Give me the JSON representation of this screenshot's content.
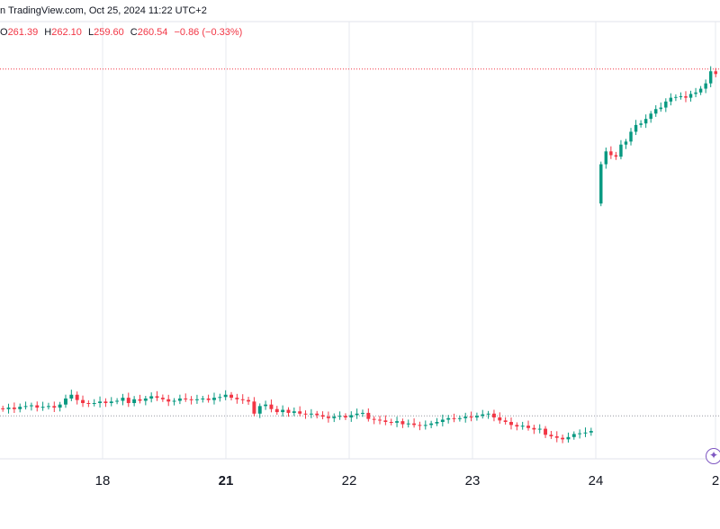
{
  "header": {
    "source_text": "n TradingView.com, Oct 25, 2024 11:22 UTC+2"
  },
  "ohlc": {
    "o_label": "O",
    "o_value": "261.39",
    "h_label": "H",
    "h_value": "262.10",
    "l_label": "L",
    "l_value": "259.60",
    "c_label": "C",
    "c_value": "260.54",
    "change": "−0.86 (−0.33%)"
  },
  "colors": {
    "up": "#089981",
    "down": "#f23645",
    "grid": "#e7e9ef",
    "dotted_line": "#f23645",
    "axis_text": "#131722"
  },
  "icons": {
    "ai_button": "sparkle-icon"
  },
  "chart_data": {
    "type": "candlestick",
    "title": "",
    "xlabel": "",
    "ylabel": "",
    "x_ticks": [
      {
        "label": "18",
        "bold": false
      },
      {
        "label": "21",
        "bold": true
      },
      {
        "label": "22",
        "bold": false
      },
      {
        "label": "23",
        "bold": false
      },
      {
        "label": "24",
        "bold": false
      },
      {
        "label": "2",
        "bold": false
      }
    ],
    "y_range": [
      212,
      262
    ],
    "reference_lines": [
      261.2,
      215.3
    ],
    "grid": true,
    "series": [
      {
        "segment": "pre-24",
        "close": [
          216.2,
          216.4,
          216.2,
          216.5,
          216.6,
          216.7,
          216.4,
          216.5,
          216.6,
          216.4,
          216.8,
          217.6,
          218.1,
          217.4,
          217.0,
          216.9,
          217.0,
          217.2,
          217.0,
          217.2,
          217.3,
          217.7,
          217.0,
          217.5,
          217.3,
          217.6,
          217.9,
          217.7,
          217.5,
          217.2,
          217.3,
          217.6,
          217.5,
          217.4,
          217.5,
          217.6,
          217.4,
          217.7,
          217.8,
          218.1,
          217.7,
          217.5,
          217.4,
          217.2,
          215.6,
          216.6,
          216.8,
          216.2,
          215.8,
          216.1,
          215.7,
          215.9,
          215.6,
          215.5,
          215.6,
          215.4,
          215.2,
          215.0,
          215.2,
          215.3,
          215.1,
          215.4,
          215.6,
          215.7,
          214.9,
          214.8,
          214.7,
          214.5,
          214.4,
          214.6,
          214.2,
          214.3,
          214.1,
          214.0,
          214.1,
          214.3,
          214.5,
          214.8,
          215.0,
          214.9,
          215.0,
          215.2,
          215.1,
          215.3,
          215.5,
          215.6,
          215.1,
          214.7,
          214.5,
          214.1,
          213.9,
          214.0,
          213.7,
          213.5,
          213.6,
          212.8,
          212.6,
          212.4,
          212.2,
          212.5,
          212.9,
          213.0,
          213.1,
          213.3
        ]
      },
      {
        "segment": "24-25",
        "close": [
          248.6,
          250.3,
          249.8,
          249.6,
          251.2,
          251.6,
          252.9,
          253.8,
          254.0,
          254.6,
          255.3,
          255.9,
          256.1,
          256.9,
          257.4,
          257.5,
          257.6,
          257.4,
          257.9,
          258.1,
          258.6,
          259.3,
          260.9,
          260.54
        ]
      }
    ]
  }
}
